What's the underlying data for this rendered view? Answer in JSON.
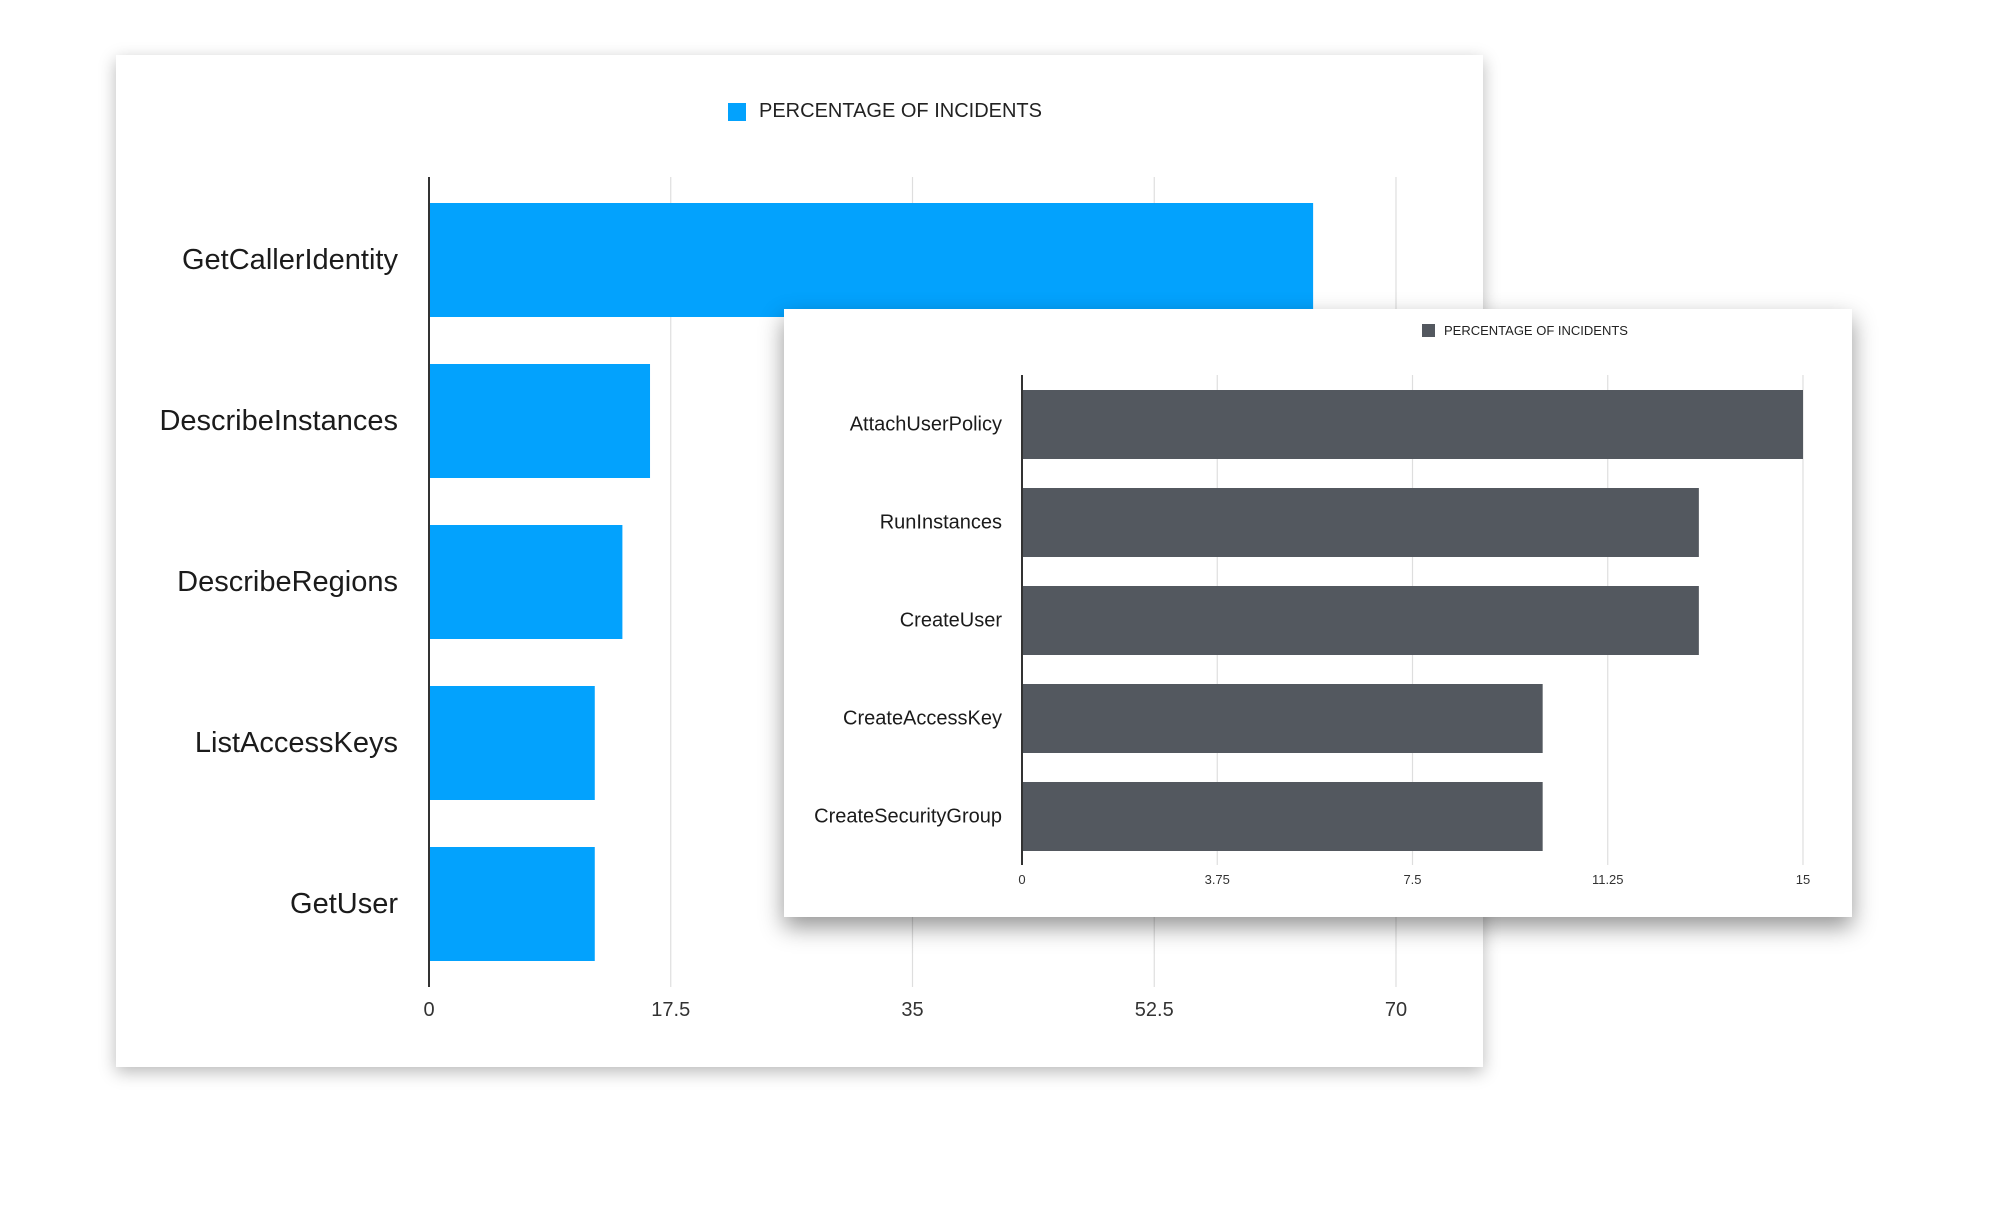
{
  "chart_data": [
    {
      "type": "bar",
      "orientation": "horizontal",
      "legend": "PERCENTAGE OF INCIDENTS",
      "legend_position": "top-center",
      "color": "#03a2fd",
      "categories": [
        "GetCallerIdentity",
        "DescribeInstances",
        "DescribeRegions",
        "ListAccessKeys",
        "GetUser"
      ],
      "series": [
        {
          "name": "PERCENTAGE OF INCIDENTS",
          "values": [
            64,
            16,
            14,
            12,
            12
          ]
        }
      ],
      "xticks": [
        "0",
        "17.5",
        "35",
        "52.5",
        "70"
      ],
      "xlim": [
        0,
        70
      ],
      "grid": true
    },
    {
      "type": "bar",
      "orientation": "horizontal",
      "legend": "PERCENTAGE OF INCIDENTS",
      "legend_position": "top-right",
      "color": "#53585f",
      "categories": [
        "AttachUserPolicy",
        "RunInstances",
        "CreateUser",
        "CreateAccessKey",
        "CreateSecurityGroup"
      ],
      "series": [
        {
          "name": "PERCENTAGE OF INCIDENTS",
          "values": [
            15,
            13,
            13,
            10,
            10
          ]
        }
      ],
      "xticks": [
        "0",
        "3.75",
        "7.5",
        "11.25",
        "15"
      ],
      "xlim": [
        0,
        15
      ],
      "grid": true
    }
  ]
}
